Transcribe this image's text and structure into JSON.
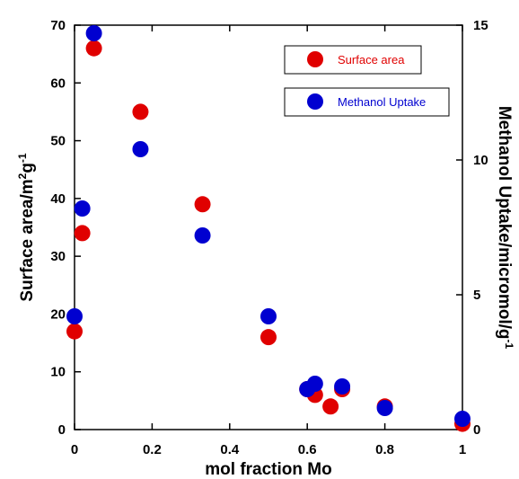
{
  "chart_data": {
    "type": "scatter",
    "xlabel": "mol fraction Mo",
    "ylabel": {
      "main": "Surface area/m",
      "sup1": "2",
      "mid": "g",
      "sup2": "-1"
    },
    "ylabel_right": {
      "main": "Methanol Uptake/micromol/g",
      "sup": "-1"
    },
    "xlim": [
      0,
      1
    ],
    "ylim": [
      0,
      70
    ],
    "ylim_right": [
      0,
      15
    ],
    "x_ticks": [
      0,
      0.2,
      0.4,
      0.6,
      0.8,
      1
    ],
    "x_tick_labels": [
      "0",
      "0.2",
      "0.4",
      "0.6",
      "0.8",
      "1"
    ],
    "y_ticks": [
      0,
      10,
      20,
      30,
      40,
      50,
      60,
      70
    ],
    "y_tick_labels": [
      "0",
      "10",
      "20",
      "30",
      "40",
      "50",
      "60",
      "70"
    ],
    "y_ticks_right": [
      0,
      5,
      10,
      15
    ],
    "y_tick_labels_right": [
      "0",
      "5",
      "10",
      "15"
    ],
    "grid": false,
    "legend_position": "top-right",
    "series": [
      {
        "name": "Surface area",
        "axis": "left",
        "color": "#e00000",
        "text_color": "#e00000",
        "x": [
          0,
          0.02,
          0.05,
          0.17,
          0.33,
          0.5,
          0.6,
          0.62,
          0.66,
          0.69,
          0.8,
          1.0
        ],
        "y": [
          17,
          34,
          66,
          55,
          39,
          16,
          7,
          6,
          4,
          7,
          4,
          1
        ]
      },
      {
        "name": "Methanol Uptake",
        "axis": "right",
        "color": "#0000d0",
        "text_color": "#0000d0",
        "x": [
          0,
          0.02,
          0.05,
          0.17,
          0.33,
          0.5,
          0.6,
          0.62,
          0.69,
          0.8,
          1.0
        ],
        "y": [
          4.2,
          8.2,
          14.7,
          10.4,
          7.2,
          4.2,
          1.5,
          1.7,
          1.6,
          0.8,
          0.4
        ]
      }
    ]
  }
}
